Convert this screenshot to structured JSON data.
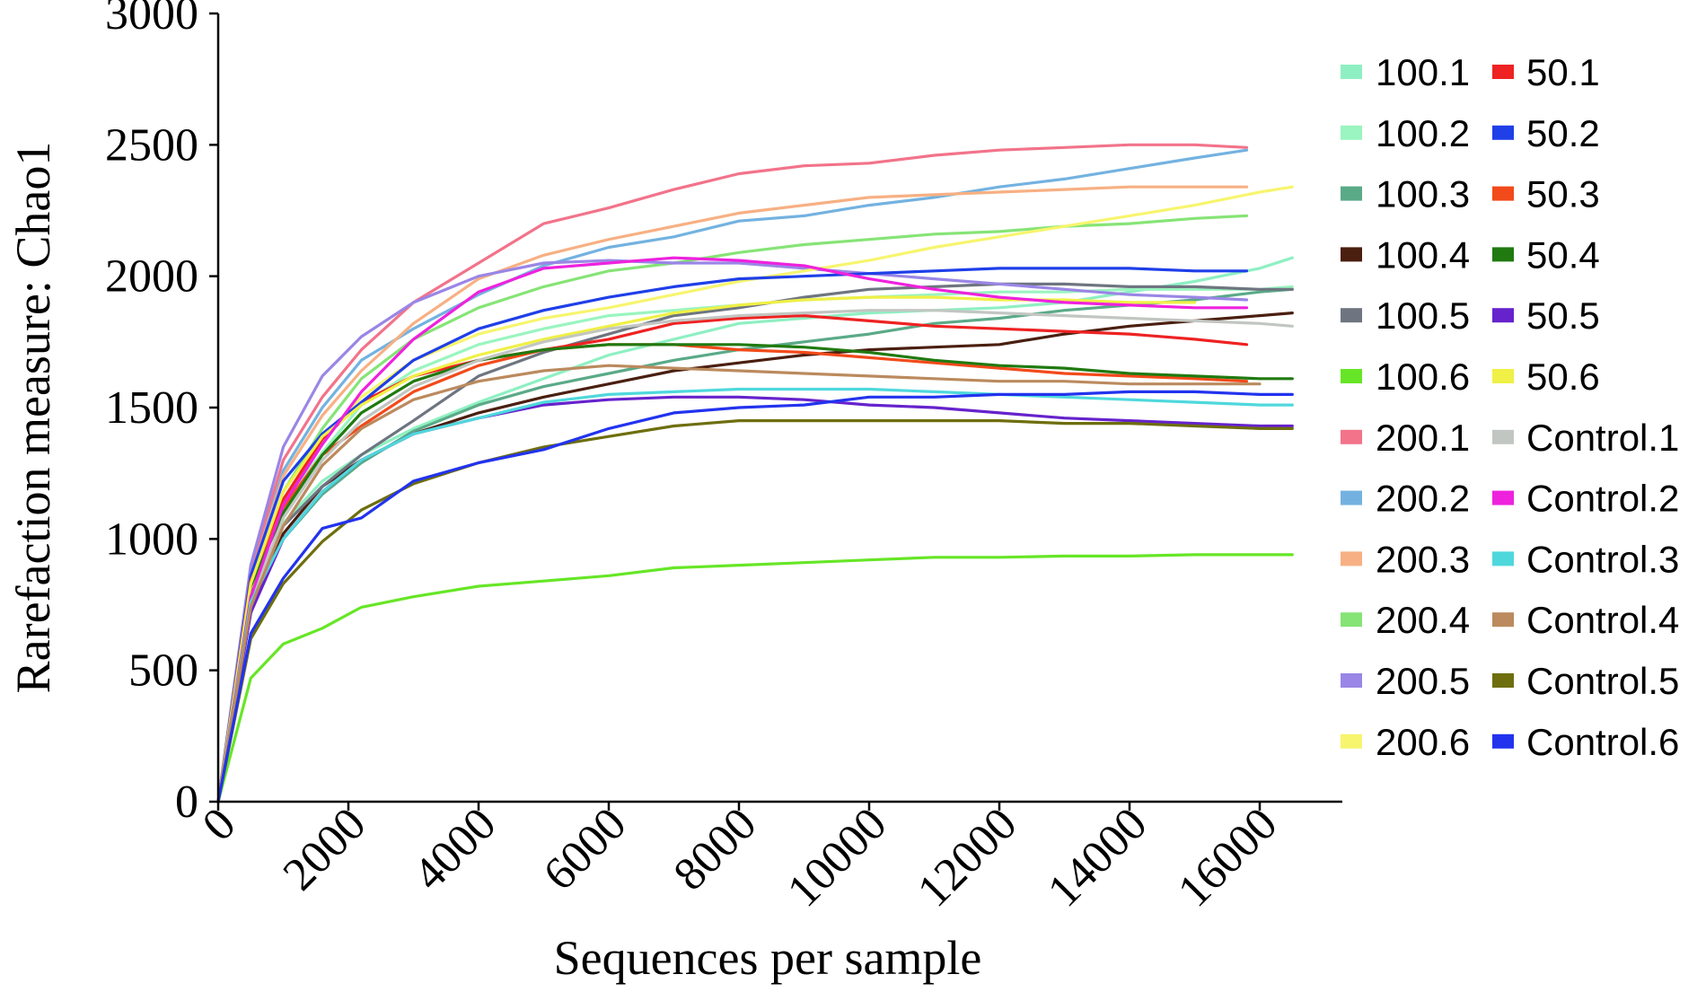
{
  "chart_data": {
    "type": "line",
    "title": "",
    "xlabel": "Sequences per sample",
    "ylabel": "Rarefaction measure: Chao1",
    "xlim": [
      0,
      16800
    ],
    "ylim": [
      0,
      3000
    ],
    "xticks": [
      0,
      2000,
      4000,
      6000,
      8000,
      10000,
      12000,
      14000,
      16000
    ],
    "yticks": [
      0,
      500,
      1000,
      1500,
      2000,
      2500,
      3000
    ],
    "xtick_labels": [
      "0",
      "2000",
      "4000",
      "6000",
      "8000",
      "10000",
      "12000",
      "14000",
      "16000"
    ],
    "ytick_labels": [
      "0",
      "500",
      "1000",
      "1500",
      "2000",
      "2500",
      "3000"
    ],
    "grid": false,
    "legend_position": "right",
    "series": [
      {
        "name": "100.1",
        "color": "#8ef0c2",
        "x": [
          0,
          500,
          1000,
          1600,
          2200,
          3000,
          4000,
          5000,
          6000,
          7000,
          8000,
          9000,
          10000,
          11000,
          12000,
          13000,
          14000,
          15000,
          16000,
          16500
        ],
        "y": [
          0,
          800,
          1060,
          1220,
          1320,
          1420,
          1520,
          1610,
          1700,
          1760,
          1820,
          1840,
          1860,
          1870,
          1880,
          1900,
          1940,
          1980,
          2030,
          2070
        ]
      },
      {
        "name": "100.2",
        "color": "#9af5c0",
        "x": [
          0,
          500,
          1000,
          1600,
          2200,
          3000,
          4000,
          5000,
          6000,
          7000,
          8000,
          9000,
          10000,
          11000,
          12000,
          13000,
          14000,
          15000,
          16000,
          16500
        ],
        "y": [
          0,
          820,
          1130,
          1330,
          1510,
          1640,
          1740,
          1800,
          1850,
          1870,
          1890,
          1910,
          1920,
          1930,
          1940,
          1940,
          1950,
          1950,
          1950,
          1960
        ]
      },
      {
        "name": "100.3",
        "color": "#5aaa88",
        "x": [
          0,
          500,
          1000,
          1600,
          2200,
          3000,
          4000,
          5000,
          6000,
          7000,
          8000,
          9000,
          10000,
          11000,
          12000,
          13000,
          14000,
          15000,
          16000,
          16500
        ],
        "y": [
          0,
          740,
          1000,
          1170,
          1290,
          1410,
          1510,
          1580,
          1630,
          1680,
          1720,
          1750,
          1780,
          1820,
          1840,
          1870,
          1890,
          1910,
          1940,
          1950
        ]
      },
      {
        "name": "100.4",
        "color": "#4a1f10",
        "x": [
          0,
          500,
          1000,
          1600,
          2200,
          3000,
          4000,
          5000,
          6000,
          7000,
          8000,
          9000,
          10000,
          11000,
          12000,
          13000,
          14000,
          15000,
          16000,
          16500
        ],
        "y": [
          0,
          720,
          1020,
          1200,
          1300,
          1400,
          1480,
          1540,
          1590,
          1640,
          1670,
          1700,
          1720,
          1730,
          1740,
          1780,
          1810,
          1830,
          1850,
          1860
        ]
      },
      {
        "name": "100.5",
        "color": "#6e7580",
        "x": [
          0,
          500,
          1000,
          1600,
          2200,
          3000,
          4000,
          5000,
          6000,
          7000,
          8000,
          9000,
          10000,
          11000,
          12000,
          13000,
          14000,
          15000,
          16000,
          16500
        ],
        "y": [
          0,
          750,
          1050,
          1200,
          1320,
          1450,
          1620,
          1710,
          1780,
          1850,
          1880,
          1920,
          1950,
          1960,
          1970,
          1970,
          1960,
          1960,
          1950,
          1950
        ]
      },
      {
        "name": "100.6",
        "color": "#66e626",
        "x": [
          0,
          500,
          1000,
          1600,
          2200,
          3000,
          4000,
          5000,
          6000,
          7000,
          8000,
          9000,
          10000,
          11000,
          12000,
          13000,
          14000,
          15000,
          16000,
          16500
        ],
        "y": [
          0,
          470,
          600,
          660,
          740,
          780,
          820,
          840,
          860,
          890,
          900,
          910,
          920,
          930,
          930,
          935,
          935,
          940,
          940,
          940
        ]
      },
      {
        "name": "200.1",
        "color": "#f2738a",
        "x": [
          0,
          500,
          1000,
          1600,
          2200,
          3000,
          4000,
          5000,
          6000,
          7000,
          8000,
          9000,
          10000,
          11000,
          12000,
          13000,
          14000,
          15000,
          15800
        ],
        "y": [
          0,
          880,
          1300,
          1540,
          1720,
          1900,
          2050,
          2200,
          2260,
          2330,
          2390,
          2420,
          2430,
          2460,
          2480,
          2490,
          2500,
          2500,
          2490
        ]
      },
      {
        "name": "200.2",
        "color": "#73b2e0",
        "x": [
          0,
          500,
          1000,
          1600,
          2200,
          3000,
          4000,
          5000,
          6000,
          7000,
          8000,
          9000,
          10000,
          11000,
          12000,
          13000,
          14000,
          15000,
          15800
        ],
        "y": [
          0,
          850,
          1260,
          1500,
          1680,
          1800,
          1930,
          2040,
          2110,
          2150,
          2210,
          2230,
          2270,
          2300,
          2340,
          2370,
          2410,
          2450,
          2480
        ]
      },
      {
        "name": "200.3",
        "color": "#f7b083",
        "x": [
          0,
          500,
          1000,
          1600,
          2200,
          3000,
          4000,
          5000,
          6000,
          7000,
          8000,
          9000,
          10000,
          11000,
          12000,
          13000,
          14000,
          15000,
          15800
        ],
        "y": [
          0,
          860,
          1240,
          1470,
          1640,
          1820,
          1990,
          2080,
          2140,
          2190,
          2240,
          2270,
          2300,
          2310,
          2320,
          2330,
          2340,
          2340,
          2340
        ]
      },
      {
        "name": "200.4",
        "color": "#86e476",
        "x": [
          0,
          500,
          1000,
          1600,
          2200,
          3000,
          4000,
          5000,
          6000,
          7000,
          8000,
          9000,
          10000,
          11000,
          12000,
          13000,
          14000,
          15000,
          15800
        ],
        "y": [
          0,
          830,
          1180,
          1420,
          1610,
          1760,
          1880,
          1960,
          2020,
          2050,
          2090,
          2120,
          2140,
          2160,
          2170,
          2190,
          2200,
          2220,
          2230
        ]
      },
      {
        "name": "200.5",
        "color": "#9a86e6",
        "x": [
          0,
          500,
          1000,
          1600,
          2200,
          3000,
          4000,
          5000,
          6000,
          7000,
          8000,
          9000,
          10000,
          11000,
          12000,
          13000,
          14000,
          15000,
          15800
        ],
        "y": [
          0,
          900,
          1350,
          1620,
          1770,
          1900,
          2000,
          2050,
          2060,
          2050,
          2050,
          2030,
          2010,
          1990,
          1970,
          1950,
          1930,
          1920,
          1910
        ]
      },
      {
        "name": "200.6",
        "color": "#f7f56e",
        "x": [
          0,
          500,
          1000,
          1600,
          2200,
          3000,
          4000,
          5000,
          6000,
          7000,
          8000,
          9000,
          10000,
          11000,
          12000,
          13000,
          14000,
          15000,
          16000,
          16500
        ],
        "y": [
          0,
          800,
          1150,
          1380,
          1540,
          1680,
          1780,
          1840,
          1880,
          1930,
          1980,
          2020,
          2060,
          2110,
          2150,
          2190,
          2230,
          2270,
          2320,
          2340
        ]
      },
      {
        "name": "50.1",
        "color": "#ee2222",
        "x": [
          0,
          500,
          1000,
          1600,
          2200,
          3000,
          4000,
          5000,
          6000,
          7000,
          8000,
          9000,
          10000,
          11000,
          12000,
          13000,
          14000,
          15000,
          15800
        ],
        "y": [
          0,
          820,
          1150,
          1380,
          1520,
          1620,
          1680,
          1720,
          1760,
          1820,
          1840,
          1850,
          1830,
          1810,
          1800,
          1790,
          1780,
          1760,
          1740
        ]
      },
      {
        "name": "50.2",
        "color": "#1f3fe8",
        "x": [
          0,
          500,
          1000,
          1600,
          2200,
          3000,
          4000,
          5000,
          6000,
          7000,
          8000,
          9000,
          10000,
          11000,
          12000,
          13000,
          14000,
          15000,
          15800
        ],
        "y": [
          0,
          860,
          1220,
          1400,
          1520,
          1680,
          1800,
          1870,
          1920,
          1960,
          1990,
          2000,
          2010,
          2020,
          2030,
          2030,
          2030,
          2020,
          2020
        ]
      },
      {
        "name": "50.3",
        "color": "#f24a1a",
        "x": [
          0,
          500,
          1000,
          1600,
          2200,
          3000,
          4000,
          5000,
          6000,
          7000,
          8000,
          9000,
          10000,
          11000,
          12000,
          13000,
          14000,
          15000,
          15800
        ],
        "y": [
          0,
          840,
          1120,
          1320,
          1430,
          1560,
          1660,
          1720,
          1740,
          1740,
          1720,
          1710,
          1690,
          1670,
          1650,
          1630,
          1620,
          1610,
          1600
        ]
      },
      {
        "name": "50.4",
        "color": "#207a10",
        "x": [
          0,
          500,
          1000,
          1600,
          2200,
          3000,
          4000,
          5000,
          6000,
          7000,
          8000,
          9000,
          10000,
          11000,
          12000,
          13000,
          14000,
          15000,
          16000,
          16500
        ],
        "y": [
          0,
          820,
          1100,
          1320,
          1480,
          1600,
          1680,
          1720,
          1740,
          1740,
          1740,
          1730,
          1710,
          1680,
          1660,
          1650,
          1630,
          1620,
          1610,
          1610
        ]
      },
      {
        "name": "50.5",
        "color": "#6622cc",
        "x": [
          0,
          500,
          1000,
          1600,
          2200,
          3000,
          4000,
          5000,
          6000,
          7000,
          8000,
          9000,
          10000,
          11000,
          12000,
          13000,
          14000,
          15000,
          16000,
          16500
        ],
        "y": [
          0,
          720,
          1000,
          1180,
          1300,
          1400,
          1460,
          1510,
          1530,
          1540,
          1540,
          1530,
          1510,
          1500,
          1480,
          1460,
          1450,
          1440,
          1430,
          1430
        ]
      },
      {
        "name": "50.6",
        "color": "#f0f046",
        "x": [
          0,
          500,
          1000,
          1600,
          2200,
          3000,
          4000,
          5000,
          6000,
          7000,
          8000,
          9000,
          10000,
          11000,
          12000,
          13000,
          14000,
          15000
        ],
        "y": [
          0,
          830,
          1180,
          1390,
          1510,
          1620,
          1700,
          1760,
          1810,
          1860,
          1890,
          1910,
          1920,
          1920,
          1910,
          1910,
          1900,
          1900
        ]
      },
      {
        "name": "Control.1",
        "color": "#c2c6c2",
        "x": [
          0,
          500,
          1000,
          1600,
          2200,
          3000,
          4000,
          5000,
          6000,
          7000,
          8000,
          9000,
          10000,
          11000,
          12000,
          13000,
          14000,
          15000,
          16000,
          16500
        ],
        "y": [
          0,
          760,
          1080,
          1300,
          1450,
          1580,
          1680,
          1750,
          1800,
          1830,
          1850,
          1860,
          1870,
          1870,
          1860,
          1850,
          1840,
          1830,
          1820,
          1810
        ]
      },
      {
        "name": "Control.2",
        "color": "#ee22dd",
        "x": [
          0,
          500,
          1000,
          1600,
          2200,
          3000,
          4000,
          5000,
          6000,
          7000,
          8000,
          9000,
          10000,
          11000,
          12000,
          13000,
          14000,
          15000,
          15800
        ],
        "y": [
          0,
          780,
          1130,
          1360,
          1560,
          1760,
          1940,
          2030,
          2050,
          2070,
          2060,
          2040,
          1990,
          1950,
          1920,
          1900,
          1890,
          1880,
          1880
        ]
      },
      {
        "name": "Control.3",
        "color": "#4ed8dc",
        "x": [
          0,
          500,
          1000,
          1600,
          2200,
          3000,
          4000,
          5000,
          6000,
          7000,
          8000,
          9000,
          10000,
          11000,
          12000,
          13000,
          14000,
          15000,
          16000,
          16500
        ],
        "y": [
          0,
          760,
          1000,
          1180,
          1300,
          1400,
          1460,
          1520,
          1550,
          1560,
          1570,
          1570,
          1570,
          1560,
          1550,
          1540,
          1530,
          1520,
          1510,
          1510
        ]
      },
      {
        "name": "Control.4",
        "color": "#bb8a5e",
        "x": [
          0,
          500,
          1000,
          1600,
          2200,
          3000,
          4000,
          5000,
          6000,
          7000,
          8000,
          9000,
          10000,
          11000,
          12000,
          13000,
          14000,
          15000,
          16000
        ],
        "y": [
          0,
          740,
          1050,
          1280,
          1420,
          1530,
          1600,
          1640,
          1660,
          1650,
          1640,
          1630,
          1620,
          1610,
          1600,
          1600,
          1590,
          1590,
          1590
        ]
      },
      {
        "name": "Control.5",
        "color": "#6e6e0e",
        "x": [
          0,
          500,
          1000,
          1600,
          2200,
          3000,
          4000,
          5000,
          6000,
          7000,
          8000,
          9000,
          10000,
          11000,
          12000,
          13000,
          14000,
          15000,
          16000,
          16500
        ],
        "y": [
          0,
          620,
          830,
          990,
          1110,
          1210,
          1290,
          1350,
          1390,
          1430,
          1450,
          1450,
          1450,
          1450,
          1450,
          1440,
          1440,
          1430,
          1420,
          1420
        ]
      },
      {
        "name": "Control.6",
        "color": "#2233ee",
        "x": [
          0,
          500,
          1000,
          1600,
          2200,
          3000,
          4000,
          5000,
          6000,
          7000,
          8000,
          9000,
          10000,
          11000,
          12000,
          13000,
          14000,
          15000,
          16000,
          16500
        ],
        "y": [
          0,
          640,
          850,
          1040,
          1080,
          1220,
          1290,
          1340,
          1420,
          1480,
          1500,
          1510,
          1540,
          1540,
          1550,
          1550,
          1560,
          1560,
          1550,
          1550
        ]
      }
    ]
  }
}
